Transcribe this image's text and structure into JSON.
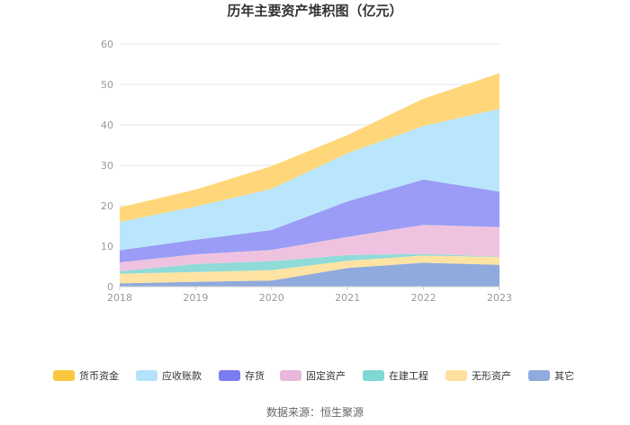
{
  "chart_data": {
    "type": "area",
    "stacked": true,
    "title": "历年主要资产堆积图（亿元）",
    "categories": [
      "2018",
      "2019",
      "2020",
      "2021",
      "2022",
      "2023"
    ],
    "ylim": [
      0,
      60
    ],
    "yticks": [
      "0",
      "10",
      "20",
      "30",
      "40",
      "50",
      "60"
    ],
    "grid": true,
    "legend_position": "bottom",
    "series": [
      {
        "name": "其它",
        "color": "#8faadc",
        "values": [
          0.8,
          1.2,
          1.5,
          4.6,
          5.9,
          5.4
        ]
      },
      {
        "name": "无形资产",
        "color": "#ffe3a3",
        "values": [
          2.4,
          2.4,
          2.6,
          1.8,
          1.8,
          1.9
        ]
      },
      {
        "name": "在建工程",
        "color": "#8fdbd8",
        "values": [
          0.6,
          2.0,
          2.2,
          1.4,
          0.4,
          0.1
        ]
      },
      {
        "name": "固定资产",
        "color": "#efc3e0",
        "values": [
          2.2,
          2.4,
          2.8,
          4.5,
          7.2,
          7.3
        ]
      },
      {
        "name": "存货",
        "color": "#9a9cf5",
        "values": [
          3.0,
          3.6,
          4.9,
          8.8,
          11.2,
          8.8
        ]
      },
      {
        "name": "应收账款",
        "color": "#b9e6fc",
        "values": [
          7.0,
          8.2,
          10.2,
          11.9,
          13.2,
          20.5
        ]
      },
      {
        "name": "货币资金",
        "color": "#ffd77a",
        "values": [
          3.6,
          4.2,
          5.6,
          4.5,
          6.8,
          8.8
        ]
      }
    ],
    "legend_order": [
      "货币资金",
      "应收账款",
      "存货",
      "固定资产",
      "在建工程",
      "无形资产",
      "其它"
    ],
    "legend_colors": {
      "货币资金": "#f9c840",
      "应收账款": "#b3e3fb",
      "存货": "#7b7cf0",
      "固定资产": "#eab8dc",
      "在建工程": "#7fd8d4",
      "无形资产": "#ffdfa0",
      "其它": "#8faadc"
    }
  },
  "source": "数据来源：恒生聚源"
}
